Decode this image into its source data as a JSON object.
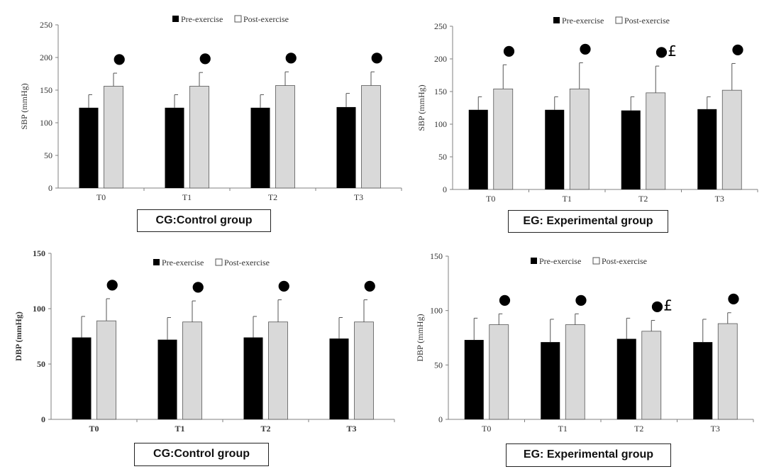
{
  "colors": {
    "pre": "#000000",
    "post": "#d9d9d9",
    "axis": "#808080",
    "text": "#333333"
  },
  "legend": {
    "pre": "Pre-exercise",
    "post": "Post-exercise"
  },
  "chart_data": [
    {
      "id": "cg-sbp",
      "type": "bar",
      "group_label": "CG:Control group",
      "title": "",
      "xlabel": "",
      "ylabel": "SBP (mmHg)",
      "categories": [
        "T0",
        "T1",
        "T2",
        "T3"
      ],
      "ylim": [
        0,
        250
      ],
      "yticks": [
        0,
        50,
        100,
        150,
        200,
        250
      ],
      "series": [
        {
          "name": "Pre-exercise",
          "values": [
            123,
            123,
            123,
            124
          ],
          "errors": [
            20,
            20,
            20,
            21
          ]
        },
        {
          "name": "Post-exercise",
          "values": [
            156,
            156,
            157,
            157
          ],
          "errors": [
            20,
            21,
            21,
            21
          ]
        }
      ],
      "annotations": [
        {
          "category": "T0",
          "marks": "●"
        },
        {
          "category": "T1",
          "marks": "●"
        },
        {
          "category": "T2",
          "marks": "●"
        },
        {
          "category": "T3",
          "marks": "●"
        }
      ]
    },
    {
      "id": "eg-sbp",
      "type": "bar",
      "group_label": "EG: Experimental group",
      "title": "",
      "xlabel": "",
      "ylabel": "SBP (mmHg)",
      "categories": [
        "T0",
        "T1",
        "T2",
        "T3"
      ],
      "ylim": [
        0,
        250
      ],
      "yticks": [
        0,
        50,
        100,
        150,
        200,
        250
      ],
      "series": [
        {
          "name": "Pre-exercise",
          "values": [
            122,
            122,
            121,
            123
          ],
          "errors": [
            20,
            20,
            21,
            19
          ]
        },
        {
          "name": "Post-exercise",
          "values": [
            154,
            154,
            148,
            152
          ],
          "errors": [
            37,
            40,
            41,
            41
          ]
        }
      ],
      "annotations": [
        {
          "category": "T0",
          "marks": "●"
        },
        {
          "category": "T1",
          "marks": "●"
        },
        {
          "category": "T2",
          "marks": "●£"
        },
        {
          "category": "T3",
          "marks": "●"
        }
      ]
    },
    {
      "id": "cg-dbp",
      "type": "bar",
      "group_label": "CG:Control group",
      "title": "",
      "xlabel": "",
      "ylabel": "DBP (mmHg)",
      "categories": [
        "T0",
        "T1",
        "T2",
        "T3"
      ],
      "ylim": [
        0,
        150
      ],
      "yticks": [
        0,
        50,
        100,
        150
      ],
      "series": [
        {
          "name": "Pre-exercise",
          "values": [
            74,
            72,
            74,
            73
          ],
          "errors": [
            19,
            20,
            19,
            19
          ]
        },
        {
          "name": "Post-exercise",
          "values": [
            89,
            88,
            88,
            88
          ],
          "errors": [
            20,
            19,
            20,
            20
          ]
        }
      ],
      "annotations": [
        {
          "category": "T0",
          "marks": "●"
        },
        {
          "category": "T1",
          "marks": "●"
        },
        {
          "category": "T2",
          "marks": "●"
        },
        {
          "category": "T3",
          "marks": "●"
        }
      ]
    },
    {
      "id": "eg-dbp",
      "type": "bar",
      "group_label": "EG: Experimental group",
      "title": "",
      "xlabel": "",
      "ylabel": "DBP (mmHg)",
      "categories": [
        "T0",
        "T1",
        "T2",
        "T3"
      ],
      "ylim": [
        0,
        150
      ],
      "yticks": [
        0,
        50,
        100,
        150
      ],
      "series": [
        {
          "name": "Pre-exercise",
          "values": [
            73,
            71,
            74,
            71
          ],
          "errors": [
            20,
            21,
            19,
            21
          ]
        },
        {
          "name": "Post-exercise",
          "values": [
            87,
            87,
            81,
            88
          ],
          "errors": [
            10,
            10,
            10,
            10
          ]
        }
      ],
      "annotations": [
        {
          "category": "T0",
          "marks": "●"
        },
        {
          "category": "T1",
          "marks": "●"
        },
        {
          "category": "T2",
          "marks": "●£"
        },
        {
          "category": "T3",
          "marks": "●"
        }
      ]
    }
  ]
}
